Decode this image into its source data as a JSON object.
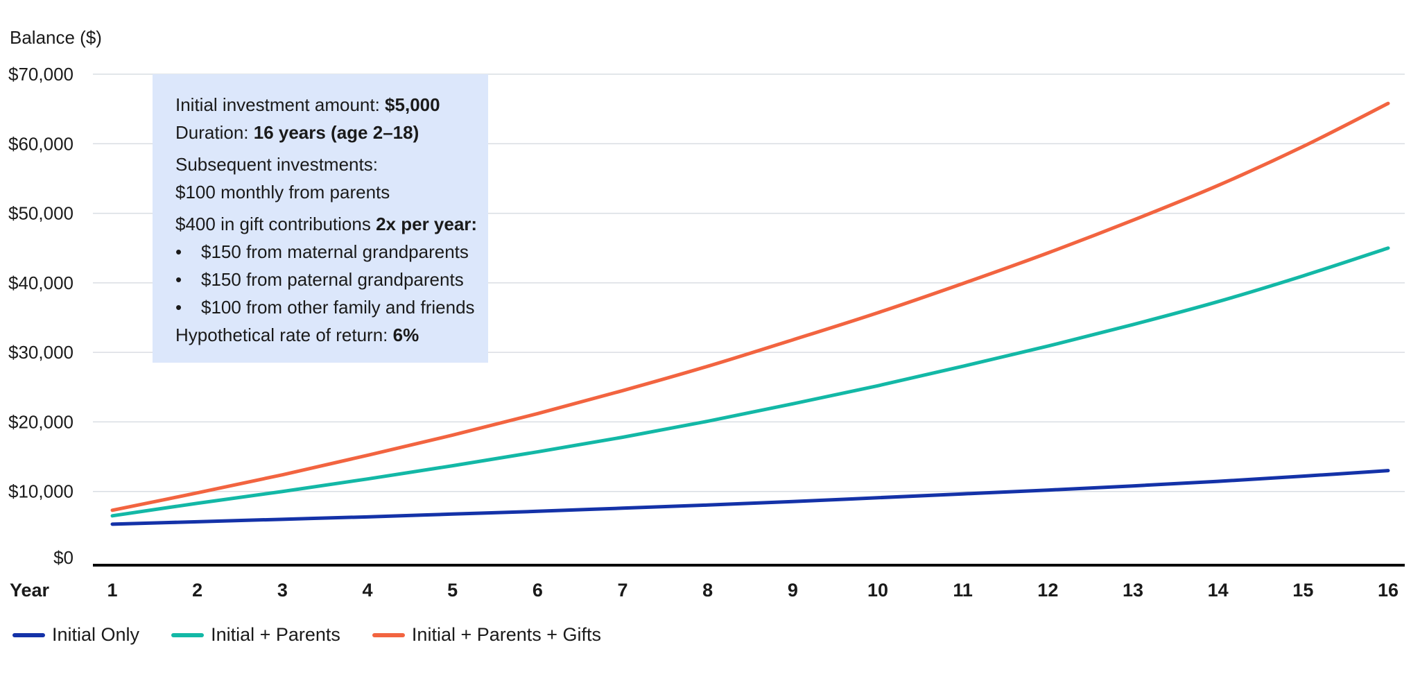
{
  "info_box": {
    "line1_prefix": "Initial investment amount: ",
    "line1_bold": "$5,000",
    "line2_prefix": "Duration: ",
    "line2_bold": "16 years (age 2–18)",
    "line3": "Subsequent investments:",
    "line4": "$100 monthly from parents",
    "line5_prefix": "$400 in gift contributions ",
    "line5_bold": "2x per year:",
    "bullet_char": "•",
    "bullets": [
      "$150 from maternal grandparents",
      "$150 from paternal grandparents",
      "$100 from other family and friends"
    ],
    "line9_prefix": "Hypothetical rate of return: ",
    "line9_bold": "6%"
  },
  "chart_data": {
    "type": "line",
    "ylabel": "Balance ($)",
    "xlabel": "Year",
    "x": [
      1,
      2,
      3,
      4,
      5,
      6,
      7,
      8,
      9,
      10,
      11,
      12,
      13,
      14,
      15,
      16
    ],
    "ylim": [
      0,
      70000
    ],
    "yticks": [
      0,
      10000,
      20000,
      30000,
      40000,
      50000,
      60000,
      70000
    ],
    "ytick_labels": [
      "$0",
      "$10,000",
      "$20,000",
      "$30,000",
      "$40,000",
      "$50,000",
      "$60,000",
      "$70,000"
    ],
    "grid": true,
    "legend_position": "bottom-left",
    "series": [
      {
        "name": "Initial Only",
        "color": "#1432a8",
        "values": [
          5300,
          5650,
          6000,
          6350,
          6750,
          7150,
          7600,
          8050,
          8550,
          9100,
          9650,
          10200,
          10800,
          11450,
          12200,
          13000
        ]
      },
      {
        "name": "Initial + Parents",
        "color": "#13b8a6",
        "values": [
          6500,
          8300,
          10000,
          11800,
          13700,
          15700,
          17800,
          20100,
          22600,
          25200,
          28000,
          30900,
          34000,
          37300,
          41000,
          45000
        ]
      },
      {
        "name": "Initial + Parents + Gifts",
        "color": "#f26440",
        "values": [
          7300,
          9800,
          12400,
          15200,
          18100,
          21200,
          24500,
          28000,
          31800,
          35700,
          39900,
          44300,
          49000,
          54000,
          59600,
          65800
        ]
      }
    ]
  }
}
